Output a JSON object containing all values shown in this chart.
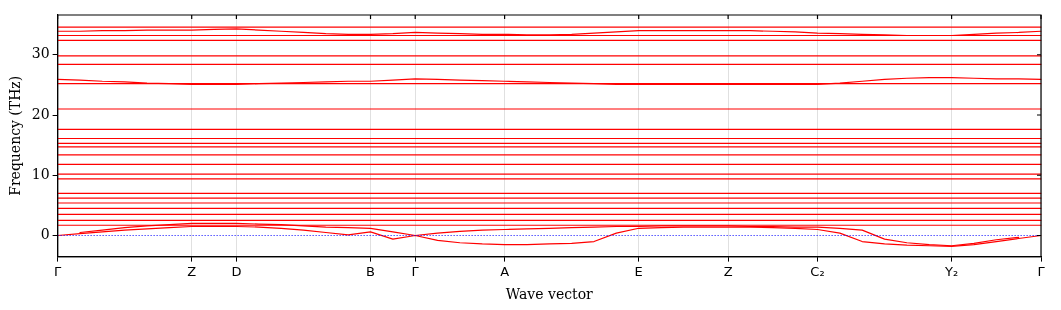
{
  "chart_data": {
    "type": "line",
    "xlabel": "Wave vector",
    "ylabel": "Frequency (THz)",
    "categories": [
      "Γ",
      null,
      null,
      null,
      null,
      null,
      "Z",
      null,
      "D",
      null,
      null,
      null,
      null,
      null,
      "B",
      null,
      "Γ",
      null,
      null,
      null,
      "A",
      null,
      null,
      null,
      null,
      null,
      "E",
      null,
      null,
      null,
      "Z",
      null,
      null,
      null,
      "C₂",
      null,
      null,
      null,
      null,
      null,
      "Y₂",
      null,
      null,
      null,
      "Γ"
    ],
    "ylim": [
      -3.5,
      36.6
    ],
    "yticks": [
      0,
      10,
      20,
      30
    ],
    "grid": "x",
    "legend": false,
    "marker": "none",
    "line_style": "solid",
    "ref_lines": [
      {
        "axis": "y",
        "value": 0,
        "color": "#0000ff",
        "line_style": "dotted"
      }
    ],
    "series": [
      {
        "color": "#ff0000",
        "values": [
          34.6,
          34.6,
          34.6,
          34.6,
          34.6,
          34.6,
          34.6,
          34.6,
          34.6,
          34.6,
          34.6,
          34.6,
          34.6,
          34.6,
          34.6,
          34.6,
          34.6,
          34.6,
          34.6,
          34.6,
          34.6,
          34.6,
          34.6,
          34.6,
          34.6,
          34.6,
          34.6,
          34.6,
          34.6,
          34.6,
          34.6,
          34.6,
          34.6,
          34.6,
          34.6,
          34.6,
          34.6,
          34.6,
          34.6,
          34.6,
          34.6,
          34.6,
          34.6,
          34.6,
          34.6
        ]
      },
      {
        "color": "#ff0000",
        "values": [
          33.9,
          33.9,
          34.0,
          34.0,
          34.1,
          34.1,
          34.1,
          34.2,
          34.3,
          34.1,
          33.9,
          33.7,
          33.5,
          33.4,
          33.4,
          33.5,
          33.7,
          33.6,
          33.5,
          33.4,
          33.4,
          33.3,
          33.3,
          33.4,
          33.6,
          33.8,
          34.0,
          34.0,
          34.0,
          34.0,
          34.0,
          34.0,
          33.9,
          33.8,
          33.6,
          33.5,
          33.4,
          33.3,
          33.2,
          33.2,
          33.2,
          33.4,
          33.6,
          33.7,
          33.9
        ]
      },
      {
        "color": "#ff0000",
        "values": [
          33.2,
          33.2,
          33.2,
          33.2,
          33.2,
          33.2,
          33.2,
          33.2,
          33.2,
          33.2,
          33.2,
          33.2,
          33.2,
          33.2,
          33.2,
          33.2,
          33.2,
          33.2,
          33.2,
          33.2,
          33.2,
          33.2,
          33.2,
          33.2,
          33.2,
          33.2,
          33.2,
          33.2,
          33.2,
          33.2,
          33.2,
          33.2,
          33.2,
          33.2,
          33.2,
          33.2,
          33.2,
          33.2,
          33.2,
          33.2,
          33.2,
          33.2,
          33.2,
          33.2,
          33.2
        ]
      },
      {
        "color": "#ff0000",
        "values": [
          32.4,
          32.4,
          32.4,
          32.4,
          32.4,
          32.4,
          32.4,
          32.4,
          32.4,
          32.4,
          32.4,
          32.4,
          32.4,
          32.4,
          32.4,
          32.4,
          32.4,
          32.4,
          32.4,
          32.4,
          32.4,
          32.4,
          32.4,
          32.4,
          32.4,
          32.4,
          32.4,
          32.4,
          32.4,
          32.4,
          32.4,
          32.4,
          32.4,
          32.4,
          32.4,
          32.4,
          32.4,
          32.4,
          32.4,
          32.4,
          32.4,
          32.4,
          32.4,
          32.4,
          32.4
        ]
      },
      {
        "color": "#ff0000",
        "values": [
          29.8,
          29.8,
          29.8,
          29.8,
          29.8,
          29.8,
          29.8,
          29.8,
          29.8,
          29.8,
          29.8,
          29.8,
          29.8,
          29.8,
          29.8,
          29.8,
          29.8,
          29.8,
          29.8,
          29.8,
          29.8,
          29.8,
          29.8,
          29.8,
          29.8,
          29.8,
          29.8,
          29.8,
          29.8,
          29.8,
          29.8,
          29.8,
          29.8,
          29.8,
          29.8,
          29.8,
          29.8,
          29.8,
          29.8,
          29.8,
          29.8,
          29.8,
          29.8,
          29.8,
          29.8
        ]
      },
      {
        "color": "#ff0000",
        "values": [
          28.4,
          28.4,
          28.4,
          28.4,
          28.4,
          28.4,
          28.4,
          28.4,
          28.4,
          28.4,
          28.4,
          28.4,
          28.4,
          28.4,
          28.4,
          28.4,
          28.4,
          28.4,
          28.4,
          28.4,
          28.4,
          28.4,
          28.4,
          28.4,
          28.4,
          28.4,
          28.4,
          28.4,
          28.4,
          28.4,
          28.4,
          28.4,
          28.4,
          28.4,
          28.4,
          28.4,
          28.4,
          28.4,
          28.4,
          28.4,
          28.4,
          28.4,
          28.4,
          28.4,
          28.4
        ]
      },
      {
        "color": "#ff0000",
        "values": [
          25.9,
          25.8,
          25.6,
          25.5,
          25.3,
          25.2,
          25.1,
          25.1,
          25.1,
          25.2,
          25.3,
          25.4,
          25.5,
          25.6,
          25.6,
          25.8,
          26.0,
          25.9,
          25.8,
          25.7,
          25.6,
          25.5,
          25.4,
          25.3,
          25.2,
          25.1,
          25.1,
          25.1,
          25.1,
          25.1,
          25.1,
          25.1,
          25.1,
          25.1,
          25.1,
          25.3,
          25.6,
          25.9,
          26.1,
          26.2,
          26.2,
          26.1,
          26.0,
          26.0,
          25.9
        ]
      },
      {
        "color": "#ff0000",
        "values": [
          25.2,
          25.2,
          25.2,
          25.2,
          25.2,
          25.2,
          25.2,
          25.2,
          25.2,
          25.2,
          25.2,
          25.2,
          25.2,
          25.2,
          25.2,
          25.2,
          25.2,
          25.2,
          25.2,
          25.2,
          25.2,
          25.2,
          25.2,
          25.2,
          25.2,
          25.2,
          25.2,
          25.2,
          25.2,
          25.2,
          25.2,
          25.2,
          25.2,
          25.2,
          25.2,
          25.2,
          25.2,
          25.2,
          25.2,
          25.2,
          25.2,
          25.2,
          25.2,
          25.2,
          25.2
        ]
      },
      {
        "color": "#ff0000",
        "values": [
          21.0,
          21.0,
          21.0,
          21.0,
          21.0,
          21.0,
          21.0,
          21.0,
          21.0,
          21.0,
          21.0,
          21.0,
          21.0,
          21.0,
          21.0,
          21.0,
          21.0,
          21.0,
          21.0,
          21.0,
          21.0,
          21.0,
          21.0,
          21.0,
          21.0,
          21.0,
          21.0,
          21.0,
          21.0,
          21.0,
          21.0,
          21.0,
          21.0,
          21.0,
          21.0,
          21.0,
          21.0,
          21.0,
          21.0,
          21.0,
          21.0,
          21.0,
          21.0,
          21.0,
          21.0
        ]
      },
      {
        "color": "#ff0000",
        "values": [
          17.6,
          17.6,
          17.6,
          17.6,
          17.6,
          17.6,
          17.6,
          17.6,
          17.6,
          17.6,
          17.6,
          17.6,
          17.6,
          17.6,
          17.6,
          17.6,
          17.6,
          17.6,
          17.6,
          17.6,
          17.6,
          17.6,
          17.6,
          17.6,
          17.6,
          17.6,
          17.6,
          17.6,
          17.6,
          17.6,
          17.6,
          17.6,
          17.6,
          17.6,
          17.6,
          17.6,
          17.6,
          17.6,
          17.6,
          17.6,
          17.6,
          17.6,
          17.6,
          17.6,
          17.6
        ]
      },
      {
        "color": "#ff0000",
        "values": [
          16.1,
          16.1,
          16.1,
          16.1,
          16.1,
          16.1,
          16.1,
          16.1,
          16.1,
          16.1,
          16.1,
          16.1,
          16.1,
          16.1,
          16.1,
          16.1,
          16.1,
          16.1,
          16.1,
          16.1,
          16.1,
          16.1,
          16.1,
          16.1,
          16.1,
          16.1,
          16.1,
          16.1,
          16.1,
          16.1,
          16.1,
          16.1,
          16.1,
          16.1,
          16.1,
          16.1,
          16.1,
          16.1,
          16.1,
          16.1,
          16.1,
          16.1,
          16.1,
          16.1,
          16.1
        ]
      },
      {
        "color": "#ff0000",
        "values": [
          15.3,
          15.3,
          15.3,
          15.3,
          15.3,
          15.3,
          15.3,
          15.3,
          15.3,
          15.3,
          15.3,
          15.3,
          15.3,
          15.3,
          15.3,
          15.3,
          15.3,
          15.3,
          15.3,
          15.3,
          15.3,
          15.3,
          15.3,
          15.3,
          15.3,
          15.3,
          15.3,
          15.3,
          15.3,
          15.3,
          15.3,
          15.3,
          15.3,
          15.3,
          15.3,
          15.3,
          15.3,
          15.3,
          15.3,
          15.3,
          15.3,
          15.3,
          15.3,
          15.3,
          15.3
        ]
      },
      {
        "color": "#ff0000",
        "values": [
          14.7,
          14.7,
          14.7,
          14.7,
          14.7,
          14.7,
          14.7,
          14.7,
          14.7,
          14.7,
          14.7,
          14.7,
          14.7,
          14.7,
          14.7,
          14.7,
          14.7,
          14.7,
          14.7,
          14.7,
          14.7,
          14.7,
          14.7,
          14.7,
          14.7,
          14.7,
          14.7,
          14.7,
          14.7,
          14.7,
          14.7,
          14.7,
          14.7,
          14.7,
          14.7,
          14.7,
          14.7,
          14.7,
          14.7,
          14.7,
          14.7,
          14.7,
          14.7,
          14.7,
          14.7
        ]
      },
      {
        "color": "#ff0000",
        "values": [
          13.4,
          13.4,
          13.4,
          13.4,
          13.4,
          13.4,
          13.4,
          13.4,
          13.4,
          13.4,
          13.4,
          13.4,
          13.4,
          13.4,
          13.4,
          13.4,
          13.4,
          13.4,
          13.4,
          13.4,
          13.4,
          13.4,
          13.4,
          13.4,
          13.4,
          13.4,
          13.4,
          13.4,
          13.4,
          13.4,
          13.4,
          13.4,
          13.4,
          13.4,
          13.4,
          13.4,
          13.4,
          13.4,
          13.4,
          13.4,
          13.4,
          13.4,
          13.4,
          13.4,
          13.4
        ]
      },
      {
        "color": "#ff0000",
        "values": [
          11.8,
          11.8,
          11.8,
          11.8,
          11.8,
          11.8,
          11.8,
          11.8,
          11.8,
          11.8,
          11.8,
          11.8,
          11.8,
          11.8,
          11.8,
          11.8,
          11.8,
          11.8,
          11.8,
          11.8,
          11.8,
          11.8,
          11.8,
          11.8,
          11.8,
          11.8,
          11.8,
          11.8,
          11.8,
          11.8,
          11.8,
          11.8,
          11.8,
          11.8,
          11.8,
          11.8,
          11.8,
          11.8,
          11.8,
          11.8,
          11.8,
          11.8,
          11.8,
          11.8,
          11.8
        ]
      },
      {
        "color": "#ff0000",
        "values": [
          10.2,
          10.2,
          10.2,
          10.2,
          10.2,
          10.2,
          10.2,
          10.2,
          10.2,
          10.2,
          10.2,
          10.2,
          10.2,
          10.2,
          10.2,
          10.2,
          10.2,
          10.2,
          10.2,
          10.2,
          10.2,
          10.2,
          10.2,
          10.2,
          10.2,
          10.2,
          10.2,
          10.2,
          10.2,
          10.2,
          10.2,
          10.2,
          10.2,
          10.2,
          10.2,
          10.2,
          10.2,
          10.2,
          10.2,
          10.2,
          10.2,
          10.2,
          10.2,
          10.2,
          10.2
        ]
      },
      {
        "color": "#ff0000",
        "values": [
          9.4,
          9.4,
          9.4,
          9.4,
          9.4,
          9.4,
          9.4,
          9.4,
          9.4,
          9.4,
          9.4,
          9.4,
          9.4,
          9.4,
          9.4,
          9.4,
          9.4,
          9.4,
          9.4,
          9.4,
          9.4,
          9.4,
          9.4,
          9.4,
          9.4,
          9.4,
          9.4,
          9.4,
          9.4,
          9.4,
          9.4,
          9.4,
          9.4,
          9.4,
          9.4,
          9.4,
          9.4,
          9.4,
          9.4,
          9.4,
          9.4,
          9.4,
          9.4,
          9.4,
          9.4
        ]
      },
      {
        "color": "#ff0000",
        "values": [
          7.0,
          7.0,
          7.0,
          7.0,
          7.0,
          7.0,
          7.0,
          7.0,
          7.0,
          7.0,
          7.0,
          7.0,
          7.0,
          7.0,
          7.0,
          7.0,
          7.0,
          7.0,
          7.0,
          7.0,
          7.0,
          7.0,
          7.0,
          7.0,
          7.0,
          7.0,
          7.0,
          7.0,
          7.0,
          7.0,
          7.0,
          7.0,
          7.0,
          7.0,
          7.0,
          7.0,
          7.0,
          7.0,
          7.0,
          7.0,
          7.0,
          7.0,
          7.0,
          7.0,
          7.0
        ]
      },
      {
        "color": "#ff0000",
        "values": [
          6.2,
          6.2,
          6.2,
          6.2,
          6.2,
          6.2,
          6.2,
          6.2,
          6.2,
          6.2,
          6.2,
          6.2,
          6.2,
          6.2,
          6.2,
          6.2,
          6.2,
          6.2,
          6.2,
          6.2,
          6.2,
          6.2,
          6.2,
          6.2,
          6.2,
          6.2,
          6.2,
          6.2,
          6.2,
          6.2,
          6.2,
          6.2,
          6.2,
          6.2,
          6.2,
          6.2,
          6.2,
          6.2,
          6.2,
          6.2,
          6.2,
          6.2,
          6.2,
          6.2,
          6.2
        ]
      },
      {
        "color": "#ff0000",
        "values": [
          5.4,
          5.4,
          5.4,
          5.4,
          5.4,
          5.4,
          5.4,
          5.4,
          5.4,
          5.4,
          5.4,
          5.4,
          5.4,
          5.4,
          5.4,
          5.4,
          5.4,
          5.4,
          5.4,
          5.4,
          5.4,
          5.4,
          5.4,
          5.4,
          5.4,
          5.4,
          5.4,
          5.4,
          5.4,
          5.4,
          5.4,
          5.4,
          5.4,
          5.4,
          5.4,
          5.4,
          5.4,
          5.4,
          5.4,
          5.4,
          5.4,
          5.4,
          5.4,
          5.4,
          5.4
        ]
      },
      {
        "color": "#ff0000",
        "values": [
          4.5,
          4.5,
          4.5,
          4.5,
          4.5,
          4.5,
          4.5,
          4.5,
          4.5,
          4.5,
          4.5,
          4.5,
          4.5,
          4.5,
          4.5,
          4.5,
          4.5,
          4.5,
          4.5,
          4.5,
          4.5,
          4.5,
          4.5,
          4.5,
          4.5,
          4.5,
          4.5,
          4.5,
          4.5,
          4.5,
          4.5,
          4.5,
          4.5,
          4.5,
          4.5,
          4.5,
          4.5,
          4.5,
          4.5,
          4.5,
          4.5,
          4.5,
          4.5,
          4.5,
          4.5
        ]
      },
      {
        "color": "#ff0000",
        "values": [
          3.5,
          3.5,
          3.5,
          3.5,
          3.5,
          3.5,
          3.5,
          3.5,
          3.5,
          3.5,
          3.5,
          3.5,
          3.5,
          3.5,
          3.5,
          3.5,
          3.5,
          3.5,
          3.5,
          3.5,
          3.5,
          3.5,
          3.5,
          3.5,
          3.5,
          3.5,
          3.5,
          3.5,
          3.5,
          3.5,
          3.5,
          3.5,
          3.5,
          3.5,
          3.5,
          3.5,
          3.5,
          3.5,
          3.5,
          3.5,
          3.5,
          3.5,
          3.5,
          3.5,
          3.5
        ]
      },
      {
        "color": "#ff0000",
        "values": [
          2.5,
          2.5,
          2.5,
          2.5,
          2.5,
          2.5,
          2.5,
          2.5,
          2.5,
          2.5,
          2.5,
          2.5,
          2.5,
          2.5,
          2.5,
          2.5,
          2.5,
          2.5,
          2.5,
          2.5,
          2.5,
          2.5,
          2.5,
          2.5,
          2.5,
          2.5,
          2.5,
          2.5,
          2.5,
          2.5,
          2.5,
          2.5,
          2.5,
          2.5,
          2.5,
          2.5,
          2.5,
          2.5,
          2.5,
          2.5,
          2.5,
          2.5,
          2.5,
          2.5,
          2.5
        ]
      },
      {
        "color": "#ff0000",
        "values": [
          1.7,
          1.7,
          1.7,
          1.7,
          1.7,
          1.7,
          1.7,
          1.7,
          1.7,
          1.7,
          1.7,
          1.7,
          1.7,
          1.7,
          1.7,
          1.7,
          1.7,
          1.7,
          1.7,
          1.7,
          1.7,
          1.7,
          1.7,
          1.7,
          1.7,
          1.7,
          1.7,
          1.7,
          1.7,
          1.7,
          1.7,
          1.7,
          1.7,
          1.7,
          1.7,
          1.7,
          1.7,
          1.7,
          1.7,
          1.7,
          1.7,
          1.7,
          1.7,
          1.7,
          1.7
        ]
      },
      {
        "color": "#ff0000",
        "values": [
          0,
          0.3,
          0.6,
          0.9,
          1.1,
          1.3,
          1.5,
          1.5,
          1.5,
          1.4,
          1.2,
          0.9,
          0.5,
          0.1,
          0.6,
          -0.6,
          0,
          -0.8,
          -1.2,
          -1.4,
          -1.5,
          -1.5,
          -1.4,
          -1.3,
          -1.0,
          0.4,
          1.2,
          1.3,
          1.4,
          1.4,
          1.4,
          1.4,
          1.3,
          1.2,
          1.0,
          0.4,
          -1.0,
          -1.4,
          -1.6,
          -1.7,
          -1.8,
          -1.5,
          -1.0,
          -0.5,
          0
        ]
      },
      {
        "color": "#ff0000",
        "values": [
          null,
          0.5,
          0.9,
          1.3,
          1.6,
          1.8,
          2.0,
          2.0,
          2.0,
          1.9,
          1.8,
          1.6,
          1.4,
          1.3,
          1.2,
          0.6,
          0,
          0.4,
          0.7,
          0.9,
          1.0,
          1.1,
          1.2,
          1.3,
          1.4,
          1.5,
          1.5,
          1.6,
          1.6,
          1.6,
          1.6,
          1.5,
          1.5,
          1.4,
          1.4,
          1.2,
          0.9,
          -0.6,
          -1.2,
          -1.5,
          -1.7,
          -1.3,
          -0.7,
          -0.3,
          null
        ]
      }
    ]
  }
}
